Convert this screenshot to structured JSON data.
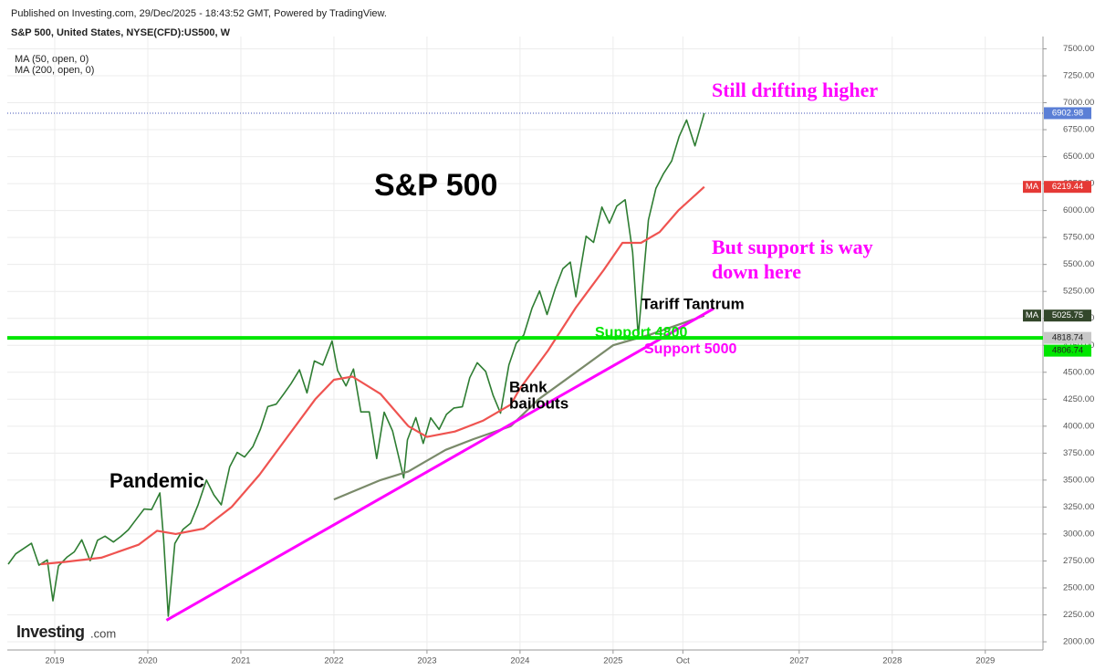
{
  "chart_data": {
    "type": "line",
    "published": "Published on Investing.com, 29/Dec/2025 - 18:43:52 GMT, Powered by TradingView.",
    "title": "S&P 500, United States, NYSE(CFD):US500, W",
    "legend": [
      "MA (50, open, 0)",
      "MA (200, open, 0)"
    ],
    "logo": {
      "name": "Investing",
      "suffix": ".com"
    },
    "xlim": [
      2018.49,
      2029.62
    ],
    "xticks": [
      2019,
      2020,
      2021,
      2022,
      2023,
      2024,
      2025,
      {
        "value": 2025.75,
        "label": "Oct"
      },
      2027,
      2028,
      2029
    ],
    "ylim": [
      1924,
      7614
    ],
    "yticks": [
      {
        "value": 2000,
        "label": "2000.00"
      },
      {
        "value": 2250,
        "label": "2250.00"
      },
      {
        "value": 2500,
        "label": "2500.00"
      },
      {
        "value": 2750,
        "label": "2750.00"
      },
      {
        "value": 3000,
        "label": "3000.00"
      },
      {
        "value": 3250,
        "label": "3250.00"
      },
      {
        "value": 3500,
        "label": "3500.00"
      },
      {
        "value": 3750,
        "label": "3750.00"
      },
      {
        "value": 4000,
        "label": "4000.00"
      },
      {
        "value": 4250,
        "label": "4250.00"
      },
      {
        "value": 4500,
        "label": "4500.00"
      },
      {
        "value": 4750,
        "label": "4750.00"
      },
      {
        "value": 5000,
        "label": "5000.00"
      },
      {
        "value": 5250,
        "label": "5250.00"
      },
      {
        "value": 5500,
        "label": "5500.00"
      },
      {
        "value": 5750,
        "label": "5750.00"
      },
      {
        "value": 6000,
        "label": "6000.00"
      },
      {
        "value": 6250,
        "label": "6250.00"
      },
      {
        "value": 6500,
        "label": "6500.00"
      },
      {
        "value": 6750,
        "label": "6750.00"
      },
      {
        "value": 7000,
        "label": "7000.00"
      },
      {
        "value": 7250,
        "label": "7250.00"
      },
      {
        "value": 7500,
        "label": "7500.00"
      }
    ],
    "grid": true,
    "series": [
      {
        "color": "#2e7d32",
        "x": [
          2018.5,
          2018.58,
          2018.75,
          2018.83,
          2018.92,
          2018.98,
          2019.04,
          2019.13,
          2019.21,
          2019.29,
          2019.38,
          2019.46,
          2019.54,
          2019.63,
          2019.71,
          2019.79,
          2019.88,
          2019.96,
          2020.04,
          2020.13,
          2020.17,
          2020.22,
          2020.29,
          2020.38,
          2020.46,
          2020.54,
          2020.63,
          2020.71,
          2020.79,
          2020.88,
          2020.96,
          2021.04,
          2021.13,
          2021.21,
          2021.29,
          2021.38,
          2021.46,
          2021.54,
          2021.63,
          2021.71,
          2021.79,
          2021.88,
          2021.98,
          2022.04,
          2022.13,
          2022.21,
          2022.29,
          2022.38,
          2022.46,
          2022.54,
          2022.63,
          2022.75,
          2022.79,
          2022.88,
          2022.96,
          2023.04,
          2023.13,
          2023.21,
          2023.29,
          2023.38,
          2023.46,
          2023.54,
          2023.63,
          2023.71,
          2023.79,
          2023.88,
          2023.96,
          2024.04,
          2024.13,
          2024.21,
          2024.29,
          2024.38,
          2024.46,
          2024.54,
          2024.6,
          2024.71,
          2024.79,
          2024.88,
          2024.96,
          2025.04,
          2025.13,
          2025.21,
          2025.27,
          2025.38,
          2025.46,
          2025.54,
          2025.63,
          2025.71,
          2025.79,
          2025.88,
          2025.98
        ],
        "values": [
          2720,
          2816,
          2914,
          2711,
          2760,
          2380,
          2704,
          2784,
          2834,
          2946,
          2752,
          2942,
          2980,
          2926,
          2977,
          3038,
          3141,
          3231,
          3226,
          3380,
          2954,
          2237,
          2912,
          3044,
          3100,
          3271,
          3500,
          3363,
          3270,
          3622,
          3756,
          3714,
          3811,
          3973,
          4181,
          4204,
          4298,
          4395,
          4523,
          4308,
          4605,
          4567,
          4790,
          4516,
          4374,
          4530,
          4132,
          4132,
          3700,
          4130,
          3955,
          3520,
          3872,
          4080,
          3840,
          4077,
          3970,
          4109,
          4169,
          4180,
          4450,
          4589,
          4508,
          4288,
          4120,
          4568,
          4770,
          4846,
          5096,
          5254,
          5036,
          5278,
          5460,
          5522,
          5200,
          5762,
          5705,
          6032,
          5882,
          6041,
          6100,
          5612,
          4835,
          5912,
          6205,
          6339,
          6460,
          6688,
          6840,
          6600,
          6903
        ]
      },
      {
        "name": "MA (50, open, 0)",
        "color": "#ef5350",
        "x": [
          2018.85,
          2019.1,
          2019.5,
          2019.9,
          2020.1,
          2020.3,
          2020.6,
          2020.9,
          2021.2,
          2021.5,
          2021.8,
          2022.0,
          2022.2,
          2022.5,
          2022.8,
          2023.0,
          2023.3,
          2023.6,
          2023.9,
          2024.0,
          2024.3,
          2024.6,
          2024.9,
          2025.1,
          2025.3,
          2025.5,
          2025.7,
          2025.98
        ],
        "values": [
          2720,
          2740,
          2780,
          2900,
          3030,
          3000,
          3050,
          3250,
          3550,
          3900,
          4250,
          4430,
          4460,
          4300,
          4000,
          3900,
          3950,
          4050,
          4200,
          4350,
          4700,
          5100,
          5450,
          5700,
          5700,
          5800,
          6000,
          6219.44
        ]
      },
      {
        "name": "MA (200, open, 0)",
        "color": "#7a8a6a",
        "x": [
          2022.0,
          2022.5,
          2022.8,
          2023.2,
          2023.5,
          2023.9,
          2024.2,
          2024.6,
          2025.0,
          2025.4,
          2025.98
        ],
        "values": [
          3320,
          3500,
          3580,
          3780,
          3880,
          4000,
          4250,
          4500,
          4750,
          4850,
          5025.75
        ]
      }
    ],
    "trendline": {
      "color": "#ff00ff",
      "x": [
        2020.2,
        2026.08
      ],
      "values": [
        2200,
        5090
      ]
    },
    "support_line": {
      "color": "#00e600",
      "value": 4818.74
    },
    "price_line": {
      "color": "#3f51b5",
      "value": 6902.98
    },
    "price_tags": [
      {
        "value": 6902.98,
        "color": "#5b7fd6"
      },
      {
        "text": "MA",
        "value": 6219.44,
        "color": "#e53935"
      },
      {
        "text": "MA",
        "value": 5025.75,
        "color": "#33472b"
      },
      {
        "value": 4818.74,
        "color": "#c8c8c8"
      },
      {
        "value": 4806.74,
        "color": "#00e600"
      }
    ],
    "annotations": [
      {
        "text": "Still drifting higher",
        "color": "#ff00ff"
      },
      {
        "text": "S&P 500",
        "color": "#000000"
      },
      {
        "text": "But support is way",
        "color": "#ff00ff"
      },
      {
        "text": "down here",
        "color": "#ff00ff"
      },
      {
        "text": "Tariff Tantrum",
        "color": "#000000"
      },
      {
        "text": "Support 4800",
        "color": "#00e600"
      },
      {
        "text": "Support 5000",
        "color": "#ff00ff"
      },
      {
        "text": "Bank",
        "color": "#000000"
      },
      {
        "text": "bailouts",
        "color": "#000000"
      },
      {
        "text": "Pandemic",
        "color": "#000000"
      }
    ]
  }
}
